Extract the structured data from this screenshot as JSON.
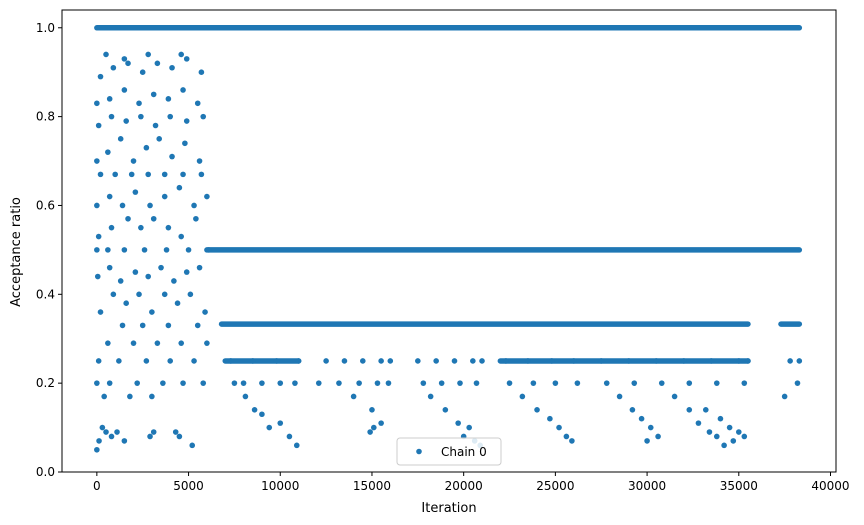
{
  "chart_data": {
    "type": "scatter",
    "title": "",
    "xlabel": "Iteration",
    "ylabel": "Acceptance ratio",
    "xlim": [
      -1900,
      40300
    ],
    "ylim": [
      0,
      1.04
    ],
    "xticks": [
      0,
      5000,
      10000,
      15000,
      20000,
      25000,
      30000,
      35000,
      40000
    ],
    "xtick_labels": [
      "0",
      "5000",
      "10000",
      "15000",
      "20000",
      "25000",
      "30000",
      "35000",
      "40000"
    ],
    "yticks": [
      0.0,
      0.2,
      0.4,
      0.6,
      0.8,
      1.0
    ],
    "ytick_labels": [
      "0.0",
      "0.2",
      "0.4",
      "0.6",
      "0.8",
      "1.0"
    ],
    "grid": false,
    "legend_position": "bottom-center",
    "marker_color": "#1f77b4",
    "series": [
      {
        "name": "Chain 0",
        "points": [
          [
            0,
            0.05
          ],
          [
            120,
            0.07
          ],
          [
            300,
            0.1
          ],
          [
            500,
            0.09
          ],
          [
            800,
            0.08
          ],
          [
            1100,
            0.09
          ],
          [
            1500,
            0.07
          ],
          [
            2900,
            0.08
          ],
          [
            3100,
            0.09
          ],
          [
            4300,
            0.09
          ],
          [
            4500,
            0.08
          ],
          [
            5200,
            0.06
          ],
          [
            0,
            0.2
          ],
          [
            400,
            0.17
          ],
          [
            700,
            0.2
          ],
          [
            1200,
            0.25
          ],
          [
            1800,
            0.17
          ],
          [
            2200,
            0.2
          ],
          [
            2700,
            0.25
          ],
          [
            3000,
            0.17
          ],
          [
            3600,
            0.2
          ],
          [
            4000,
            0.25
          ],
          [
            4700,
            0.2
          ],
          [
            5300,
            0.25
          ],
          [
            5800,
            0.2
          ],
          [
            100,
            0.25
          ],
          [
            600,
            0.29
          ],
          [
            1400,
            0.33
          ],
          [
            2000,
            0.29
          ],
          [
            2500,
            0.33
          ],
          [
            3300,
            0.29
          ],
          [
            3900,
            0.33
          ],
          [
            4600,
            0.29
          ],
          [
            5500,
            0.33
          ],
          [
            6000,
            0.29
          ],
          [
            200,
            0.36
          ],
          [
            900,
            0.4
          ],
          [
            1600,
            0.38
          ],
          [
            2300,
            0.4
          ],
          [
            3000,
            0.36
          ],
          [
            3700,
            0.4
          ],
          [
            4400,
            0.38
          ],
          [
            5100,
            0.4
          ],
          [
            5900,
            0.36
          ],
          [
            50,
            0.44
          ],
          [
            700,
            0.46
          ],
          [
            1300,
            0.43
          ],
          [
            2100,
            0.45
          ],
          [
            2800,
            0.44
          ],
          [
            3500,
            0.46
          ],
          [
            4200,
            0.43
          ],
          [
            4900,
            0.45
          ],
          [
            5600,
            0.46
          ],
          [
            0,
            0.5
          ],
          [
            600,
            0.5
          ],
          [
            1500,
            0.5
          ],
          [
            2600,
            0.5
          ],
          [
            3800,
            0.5
          ],
          [
            5000,
            0.5
          ],
          [
            6100,
            0.5
          ],
          [
            100,
            0.53
          ],
          [
            800,
            0.55
          ],
          [
            1700,
            0.57
          ],
          [
            2400,
            0.55
          ],
          [
            3100,
            0.57
          ],
          [
            3900,
            0.55
          ],
          [
            4600,
            0.53
          ],
          [
            5400,
            0.57
          ],
          [
            0,
            0.6
          ],
          [
            700,
            0.62
          ],
          [
            1400,
            0.6
          ],
          [
            2100,
            0.63
          ],
          [
            2900,
            0.6
          ],
          [
            3700,
            0.62
          ],
          [
            4500,
            0.64
          ],
          [
            5300,
            0.6
          ],
          [
            6000,
            0.62
          ],
          [
            200,
            0.67
          ],
          [
            1000,
            0.67
          ],
          [
            1900,
            0.67
          ],
          [
            2800,
            0.67
          ],
          [
            3700,
            0.67
          ],
          [
            4700,
            0.67
          ],
          [
            5700,
            0.67
          ],
          [
            0,
            0.7
          ],
          [
            600,
            0.72
          ],
          [
            1300,
            0.75
          ],
          [
            2000,
            0.7
          ],
          [
            2700,
            0.73
          ],
          [
            3400,
            0.75
          ],
          [
            4100,
            0.71
          ],
          [
            4800,
            0.74
          ],
          [
            5600,
            0.7
          ],
          [
            100,
            0.78
          ],
          [
            800,
            0.8
          ],
          [
            1600,
            0.79
          ],
          [
            2400,
            0.8
          ],
          [
            3200,
            0.78
          ],
          [
            4000,
            0.8
          ],
          [
            4900,
            0.79
          ],
          [
            5800,
            0.8
          ],
          [
            0,
            0.83
          ],
          [
            700,
            0.84
          ],
          [
            1500,
            0.86
          ],
          [
            2300,
            0.83
          ],
          [
            3100,
            0.85
          ],
          [
            3900,
            0.84
          ],
          [
            4700,
            0.86
          ],
          [
            5500,
            0.83
          ],
          [
            200,
            0.89
          ],
          [
            900,
            0.91
          ],
          [
            1700,
            0.92
          ],
          [
            2500,
            0.9
          ],
          [
            3300,
            0.92
          ],
          [
            4100,
            0.91
          ],
          [
            4900,
            0.93
          ],
          [
            5700,
            0.9
          ],
          [
            500,
            0.94
          ],
          [
            1500,
            0.93
          ],
          [
            2800,
            0.94
          ],
          [
            4600,
            0.94
          ],
          [
            7500,
            0.2
          ],
          [
            8100,
            0.17
          ],
          [
            8600,
            0.14
          ],
          [
            9000,
            0.13
          ],
          [
            9400,
            0.1
          ],
          [
            10000,
            0.11
          ],
          [
            10500,
            0.08
          ],
          [
            10900,
            0.06
          ],
          [
            8000,
            0.2
          ],
          [
            9000,
            0.2
          ],
          [
            10000,
            0.2
          ],
          [
            10800,
            0.2
          ],
          [
            7300,
            0.25
          ],
          [
            8500,
            0.25
          ],
          [
            9800,
            0.25
          ],
          [
            11000,
            0.25
          ],
          [
            12500,
            0.25
          ],
          [
            13500,
            0.25
          ],
          [
            14500,
            0.25
          ],
          [
            15500,
            0.25
          ],
          [
            16000,
            0.25
          ],
          [
            12100,
            0.2
          ],
          [
            13200,
            0.2
          ],
          [
            14300,
            0.2
          ],
          [
            15300,
            0.2
          ],
          [
            15900,
            0.2
          ],
          [
            14000,
            0.17
          ],
          [
            15000,
            0.14
          ],
          [
            15500,
            0.11
          ],
          [
            15100,
            0.1
          ],
          [
            14900,
            0.09
          ],
          [
            17500,
            0.25
          ],
          [
            18500,
            0.25
          ],
          [
            19500,
            0.25
          ],
          [
            20500,
            0.25
          ],
          [
            21000,
            0.25
          ],
          [
            17800,
            0.2
          ],
          [
            18800,
            0.2
          ],
          [
            19800,
            0.2
          ],
          [
            20700,
            0.2
          ],
          [
            18200,
            0.17
          ],
          [
            19000,
            0.14
          ],
          [
            19700,
            0.11
          ],
          [
            20300,
            0.1
          ],
          [
            20000,
            0.08
          ],
          [
            20600,
            0.07
          ],
          [
            20900,
            0.06
          ],
          [
            22300,
            0.25
          ],
          [
            23500,
            0.25
          ],
          [
            24800,
            0.25
          ],
          [
            26000,
            0.25
          ],
          [
            27500,
            0.25
          ],
          [
            29000,
            0.25
          ],
          [
            30500,
            0.25
          ],
          [
            32000,
            0.25
          ],
          [
            33500,
            0.25
          ],
          [
            35000,
            0.25
          ],
          [
            35500,
            0.25
          ],
          [
            22500,
            0.2
          ],
          [
            23800,
            0.2
          ],
          [
            25000,
            0.2
          ],
          [
            26200,
            0.2
          ],
          [
            27800,
            0.2
          ],
          [
            29300,
            0.2
          ],
          [
            30800,
            0.2
          ],
          [
            32300,
            0.2
          ],
          [
            33800,
            0.2
          ],
          [
            35300,
            0.2
          ],
          [
            23200,
            0.17
          ],
          [
            24000,
            0.14
          ],
          [
            24700,
            0.12
          ],
          [
            25200,
            0.1
          ],
          [
            25600,
            0.08
          ],
          [
            25900,
            0.07
          ],
          [
            28500,
            0.17
          ],
          [
            29200,
            0.14
          ],
          [
            29700,
            0.12
          ],
          [
            30200,
            0.1
          ],
          [
            30600,
            0.08
          ],
          [
            30000,
            0.07
          ],
          [
            31500,
            0.17
          ],
          [
            32300,
            0.14
          ],
          [
            32800,
            0.11
          ],
          [
            33400,
            0.09
          ],
          [
            33800,
            0.08
          ],
          [
            33200,
            0.14
          ],
          [
            34000,
            0.12
          ],
          [
            34500,
            0.1
          ],
          [
            35000,
            0.09
          ],
          [
            34700,
            0.07
          ],
          [
            35300,
            0.08
          ],
          [
            34200,
            0.06
          ],
          [
            37500,
            0.17
          ],
          [
            38200,
            0.2
          ],
          [
            37800,
            0.25
          ],
          [
            38300,
            0.25
          ]
        ],
        "bands": [
          {
            "y": 1.0,
            "x_start": 0,
            "x_end": 38300
          },
          {
            "y": 0.5,
            "x_start": 6000,
            "x_end": 38300
          },
          {
            "y": 0.333,
            "x_start": 6800,
            "x_end": 35500
          },
          {
            "y": 0.333,
            "x_start": 37300,
            "x_end": 38300
          },
          {
            "y": 0.25,
            "x_start": 7000,
            "x_end": 11000
          },
          {
            "y": 0.25,
            "x_start": 22000,
            "x_end": 35500
          }
        ]
      }
    ]
  }
}
